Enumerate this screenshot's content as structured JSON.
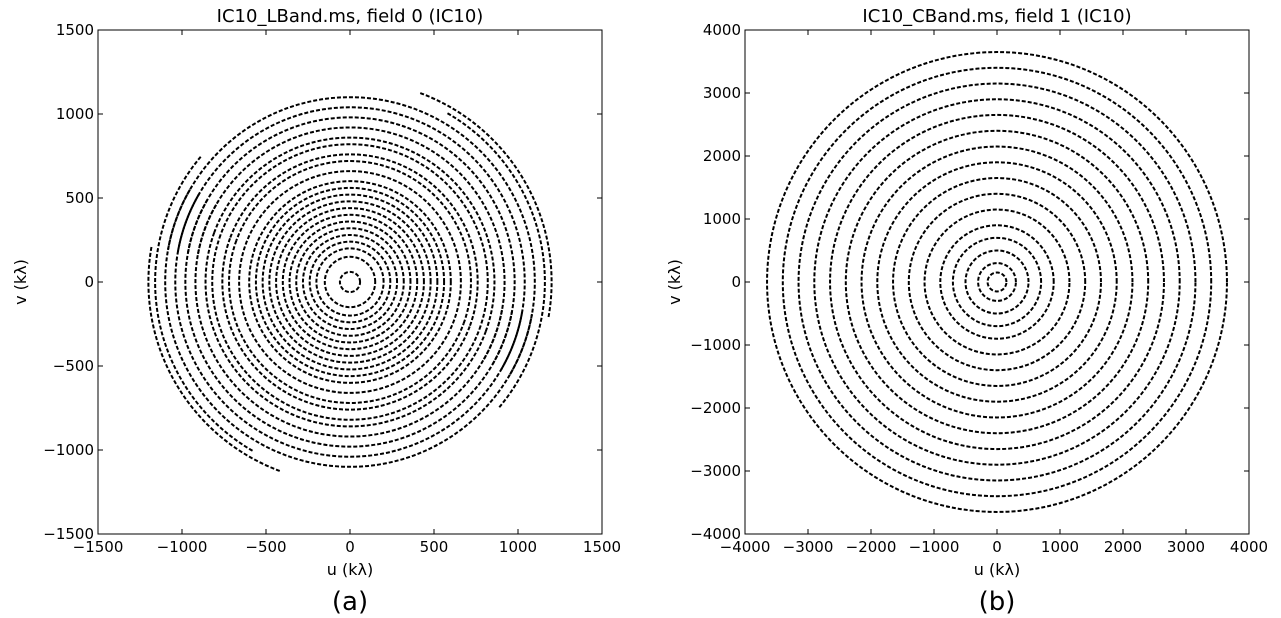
{
  "chart_data": [
    {
      "type": "scatter",
      "title": "IC10_LBand.ms, field 0 (IC10)",
      "xlabel": "u (kλ)",
      "ylabel": "v (kλ)",
      "panel_label": "(a)",
      "xlim": [
        -1500,
        1500
      ],
      "ylim": [
        -1500,
        1500
      ],
      "xticks": [
        -1500,
        -1000,
        -500,
        0,
        500,
        1000,
        1500
      ],
      "yticks": [
        -1500,
        -1000,
        -500,
        0,
        500,
        1000,
        1500
      ],
      "xtick_labels": [
        "−1500",
        "−1000",
        "−500",
        "0",
        "500",
        "1000",
        "1500"
      ],
      "ytick_labels": [
        "−1500",
        "−1000",
        "−500",
        "0",
        "500",
        "1000",
        "1500"
      ],
      "grid": false,
      "marker_color": "#000000",
      "tracks": [
        {
          "r": 60,
          "a0": 0,
          "a1": 360
        },
        {
          "r": 150,
          "a0": 0,
          "a1": 360
        },
        {
          "r": 200,
          "a0": 0,
          "a1": 360
        },
        {
          "r": 240,
          "a0": 0,
          "a1": 360
        },
        {
          "r": 280,
          "a0": 0,
          "a1": 360
        },
        {
          "r": 320,
          "a0": 0,
          "a1": 360
        },
        {
          "r": 360,
          "a0": 0,
          "a1": 360
        },
        {
          "r": 400,
          "a0": 0,
          "a1": 360
        },
        {
          "r": 440,
          "a0": 0,
          "a1": 360
        },
        {
          "r": 480,
          "a0": 0,
          "a1": 360
        },
        {
          "r": 520,
          "a0": 0,
          "a1": 360
        },
        {
          "r": 560,
          "a0": 0,
          "a1": 360
        },
        {
          "r": 600,
          "a0": 0,
          "a1": 360
        },
        {
          "r": 660,
          "a0": 0,
          "a1": 360
        },
        {
          "r": 720,
          "a0": -20,
          "a1": 160
        },
        {
          "r": 760,
          "a0": -20,
          "a1": 160
        },
        {
          "r": 820,
          "a0": 160,
          "a1": 340
        },
        {
          "r": 860,
          "a0": 160,
          "a1": 340
        },
        {
          "r": 920,
          "a0": -30,
          "a1": 170
        },
        {
          "r": 980,
          "a0": -30,
          "a1": 170
        },
        {
          "r": 1040,
          "a0": 150,
          "a1": 350
        },
        {
          "r": 1100,
          "a0": 150,
          "a1": 350
        },
        {
          "r": 1160,
          "a0": -40,
          "a1": 60
        },
        {
          "r": 1200,
          "a0": 170,
          "a1": 250
        }
      ]
    },
    {
      "type": "scatter",
      "title": "IC10_CBand.ms, field 1 (IC10)",
      "xlabel": "u (kλ)",
      "ylabel": "v (kλ)",
      "panel_label": "(b)",
      "xlim": [
        -4000,
        4000
      ],
      "ylim": [
        -4000,
        4000
      ],
      "xticks": [
        -4000,
        -3000,
        -2000,
        -1000,
        0,
        1000,
        2000,
        3000,
        4000
      ],
      "yticks": [
        -4000,
        -3000,
        -2000,
        -1000,
        0,
        1000,
        2000,
        3000,
        4000
      ],
      "xtick_labels": [
        "−4000",
        "−3000",
        "−2000",
        "−1000",
        "0",
        "1000",
        "2000",
        "3000",
        "4000"
      ],
      "ytick_labels": [
        "−4000",
        "−3000",
        "−2000",
        "−1000",
        "0",
        "1000",
        "2000",
        "3000",
        "4000"
      ],
      "grid": false,
      "marker_color": "#000000",
      "tracks": [
        {
          "r": 150,
          "a0": 0,
          "a1": 360
        },
        {
          "r": 300,
          "a0": 0,
          "a1": 360
        },
        {
          "r": 500,
          "a0": 0,
          "a1": 360
        },
        {
          "r": 700,
          "a0": 0,
          "a1": 360
        },
        {
          "r": 900,
          "a0": 0,
          "a1": 360
        },
        {
          "r": 1150,
          "a0": 0,
          "a1": 360
        },
        {
          "r": 1400,
          "a0": 0,
          "a1": 360
        },
        {
          "r": 1650,
          "a0": 0,
          "a1": 360
        },
        {
          "r": 1900,
          "a0": 0,
          "a1": 360
        },
        {
          "r": 2150,
          "a0": 0,
          "a1": 360
        },
        {
          "r": 2400,
          "a0": 0,
          "a1": 360
        },
        {
          "r": 2650,
          "a0": 0,
          "a1": 360
        },
        {
          "r": 2900,
          "a0": 0,
          "a1": 360
        },
        {
          "r": 3150,
          "a0": 0,
          "a1": 360
        },
        {
          "r": 3400,
          "a0": 0,
          "a1": 360
        },
        {
          "r": 3650,
          "a0": 0,
          "a1": 360
        }
      ]
    }
  ]
}
